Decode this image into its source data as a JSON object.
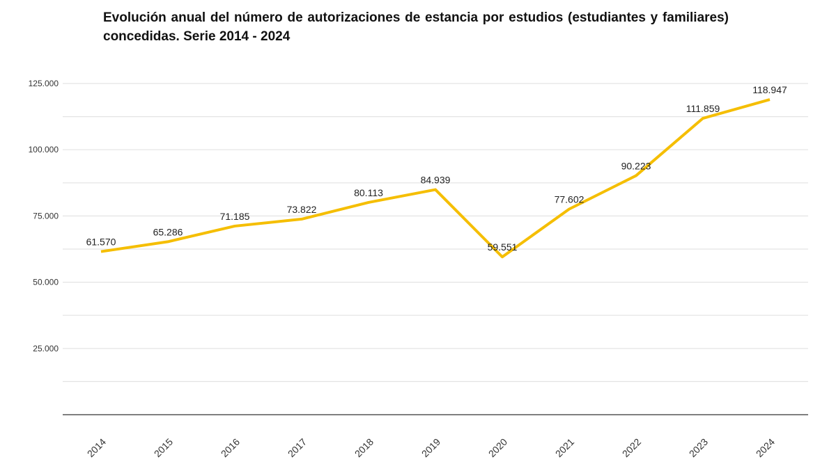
{
  "chart_data": {
    "type": "line",
    "title": "Evolución anual del número de autorizaciones de estancia por estudios (estudiantes y familiares) concedidas. Serie 2014 - 2024",
    "xlabel": "",
    "ylabel": "",
    "categories": [
      "2014",
      "2015",
      "2016",
      "2017",
      "2018",
      "2019",
      "2020",
      "2021",
      "2022",
      "2023",
      "2024"
    ],
    "values": [
      61570,
      65286,
      71185,
      73822,
      80113,
      84939,
      59551,
      77602,
      90223,
      111859,
      118947
    ],
    "data_labels": [
      "61.570",
      "65.286",
      "71.185",
      "73.822",
      "80.113",
      "84.939",
      "59.551",
      "77.602",
      "90.223",
      "111.859",
      "118.947"
    ],
    "ylim": [
      0,
      125000
    ],
    "yticks": [
      25000,
      50000,
      75000,
      100000,
      125000
    ],
    "ytick_labels": [
      "25.000",
      "50.000",
      "75.000",
      "100.000",
      "125.000"
    ],
    "grid": true,
    "line_color": "#F5BE00"
  }
}
